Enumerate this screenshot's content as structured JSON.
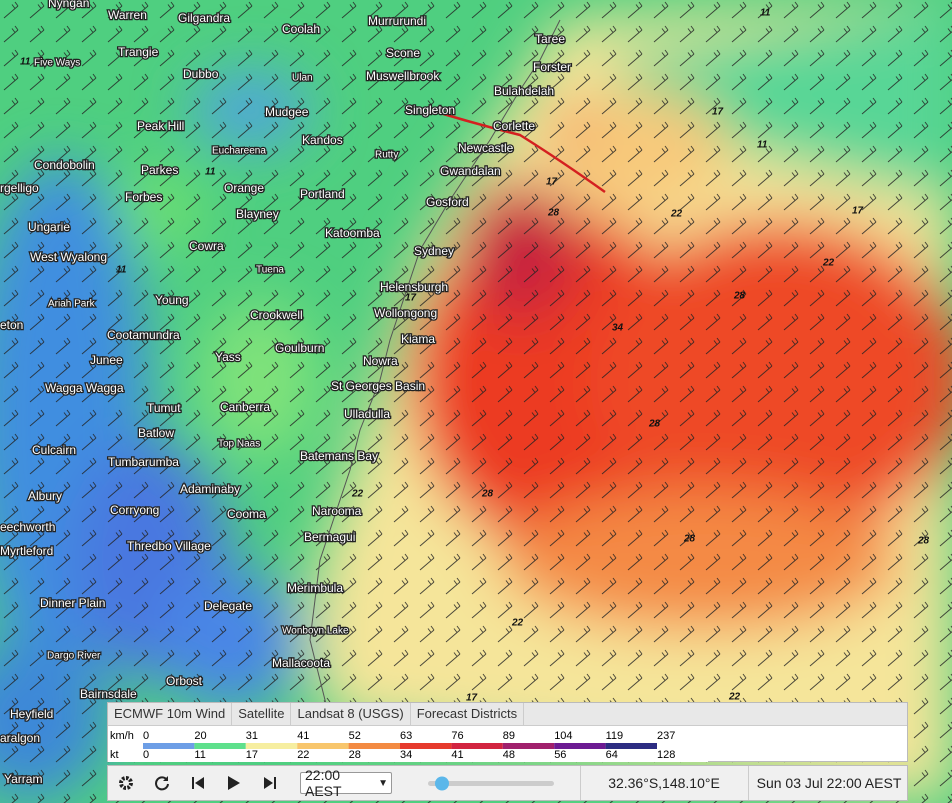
{
  "places": [
    "Nyngan",
    "Warren",
    "Gilgandra",
    "Murrurundi",
    "Coolah",
    "Taree",
    "Scone",
    "Five Ways",
    "Trangie",
    "Forster",
    "Dubbo",
    "Ulan",
    "Muswellbrook",
    "Bulahdelah",
    "Mudgee",
    "Singleton",
    "Peak Hill",
    "Kandos",
    "Corlette",
    "Euchareena",
    "Newcastle",
    "Rutty",
    "Condobolin",
    "Parkes",
    "Gwandalan",
    "Forbes",
    "Orange",
    "Portland",
    "Gosford",
    "Blayney",
    "Ungarie",
    "Katoomba",
    "Cowra",
    "Sydney",
    "West Wyalong",
    "Tuena",
    "Helensburgh",
    "Young",
    "Ariah Park",
    "Wollongong",
    "Crookwell",
    "Cootamundra",
    "Kiama",
    "Goulburn",
    "Junee",
    "Yass",
    "Nowra",
    "Wagga Wagga",
    "St Georges Basin",
    "Tumut",
    "Canberra",
    "Ulladulla",
    "Batlow",
    "Top Naas",
    "Culcairn",
    "Batemans Bay",
    "Tumbarumba",
    "Albury",
    "Adaminaby",
    "Corryong",
    "Cooma",
    "Narooma",
    "eechworth",
    "Bermagui",
    "Myrtleford",
    "Thredbo Village",
    "Merimbula",
    "Dinner Plain",
    "Delegate",
    "Wonboyn Lake",
    "Dargo River",
    "Mallacoota",
    "Orbost",
    "Bairnsdale",
    "Heyfield",
    "aralgon",
    "Yarram",
    "eton",
    "rgelligo"
  ],
  "contours": [
    "11",
    "11",
    "11",
    "11",
    "17",
    "17",
    "17",
    "17",
    "22",
    "22",
    "22",
    "22",
    "22",
    "28",
    "28",
    "28",
    "28",
    "28",
    "34",
    "11",
    "17",
    "28"
  ],
  "legend": {
    "tabs": [
      "ECMWF 10m Wind",
      "Satellite",
      "Landsat 8 (USGS)",
      "Forecast Districts"
    ],
    "kmh_unit": "km/h",
    "kmh": [
      0,
      20,
      31,
      41,
      52,
      63,
      76,
      89,
      104,
      119,
      237
    ],
    "kt_unit": "kt",
    "kt": [
      0,
      11,
      17,
      22,
      28,
      34,
      41,
      48,
      56,
      64,
      128
    ],
    "colors": [
      "#6d9ee6",
      "#5ee08c",
      "#f6eea0",
      "#f8c66c",
      "#f38a42",
      "#e63a2c",
      "#d22440",
      "#a0206c",
      "#6c1a92",
      "#2c2c82"
    ]
  },
  "controls": {
    "time": "22:00 AEST",
    "coords": "32.36°S,148.10°E",
    "datetime": "Sun 03 Jul 22:00 AEST"
  }
}
